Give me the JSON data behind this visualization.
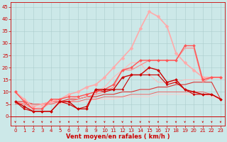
{
  "x": [
    0,
    1,
    2,
    3,
    4,
    5,
    6,
    7,
    8,
    9,
    10,
    11,
    12,
    13,
    14,
    15,
    16,
    17,
    18,
    19,
    20,
    21,
    22,
    23
  ],
  "lines": [
    {
      "y": [
        6,
        4,
        2,
        2,
        2,
        6,
        6,
        3,
        3,
        11,
        11,
        11,
        16,
        17,
        17,
        20,
        19,
        14,
        15,
        11,
        10,
        9,
        9,
        7
      ],
      "color": "#cc0000",
      "lw": 1.0,
      "marker": "D",
      "ms": 2.0,
      "zorder": 5
    },
    {
      "y": [
        6,
        3,
        2,
        2,
        2,
        6,
        5,
        3,
        4,
        11,
        10,
        11,
        11,
        17,
        17,
        17,
        17,
        13,
        14,
        11,
        9,
        9,
        9,
        7
      ],
      "color": "#cc0000",
      "lw": 0.8,
      "marker": "D",
      "ms": 1.5,
      "zorder": 4
    },
    {
      "y": [
        10,
        6,
        3,
        3,
        7,
        7,
        8,
        8,
        9,
        10,
        11,
        13,
        19,
        20,
        23,
        23,
        23,
        23,
        23,
        29,
        29,
        15,
        16,
        16
      ],
      "color": "#ff5555",
      "lw": 1.0,
      "marker": "D",
      "ms": 2.0,
      "zorder": 4
    },
    {
      "y": [
        6,
        5,
        3,
        3,
        6,
        6,
        6,
        7,
        8,
        9,
        10,
        12,
        19,
        19,
        21,
        23,
        23,
        23,
        23,
        28,
        28,
        14,
        16,
        16
      ],
      "color": "#ff8888",
      "lw": 0.8,
      "marker": null,
      "ms": 0,
      "zorder": 3
    },
    {
      "y": [
        10,
        7,
        4,
        5,
        6,
        7,
        9,
        10,
        12,
        13,
        16,
        20,
        24,
        28,
        36,
        43,
        41,
        37,
        26,
        22,
        19,
        16,
        16,
        16
      ],
      "color": "#ffaaaa",
      "lw": 1.2,
      "marker": "D",
      "ms": 2.5,
      "zorder": 3
    },
    {
      "y": [
        6,
        5,
        3,
        4,
        5,
        6,
        7,
        8,
        9,
        10,
        12,
        16,
        19,
        22,
        22,
        17,
        14,
        14,
        14,
        15,
        15,
        15,
        16,
        16
      ],
      "color": "#ffbbbb",
      "lw": 0.8,
      "marker": null,
      "ms": 0,
      "zorder": 2
    },
    {
      "y": [
        6,
        6,
        5,
        5,
        6,
        6,
        7,
        7,
        8,
        8,
        9,
        9,
        10,
        10,
        11,
        11,
        12,
        12,
        13,
        13,
        14,
        14,
        14,
        7
      ],
      "color": "#dd3333",
      "lw": 0.8,
      "marker": null,
      "ms": 0,
      "zorder": 2
    },
    {
      "y": [
        5,
        5,
        5,
        5,
        5,
        6,
        6,
        6,
        7,
        7,
        8,
        8,
        8,
        9,
        9,
        9,
        10,
        10,
        10,
        10,
        10,
        10,
        9,
        7
      ],
      "color": "#ee6666",
      "lw": 0.7,
      "marker": null,
      "ms": 0,
      "zorder": 2
    },
    {
      "y": [
        5,
        5,
        5,
        5,
        5,
        5,
        6,
        6,
        6,
        7,
        7,
        7,
        8,
        8,
        8,
        8,
        9,
        9,
        9,
        9,
        9,
        9,
        8,
        7
      ],
      "color": "#ffcccc",
      "lw": 0.7,
      "marker": null,
      "ms": 0,
      "zorder": 1
    }
  ],
  "xlabel": "Vent moyen/en rafales ( km/h )",
  "xlim": [
    -0.5,
    23.5
  ],
  "ylim": [
    -4,
    47
  ],
  "yticks": [
    0,
    5,
    10,
    15,
    20,
    25,
    30,
    35,
    40,
    45
  ],
  "xticks": [
    0,
    1,
    2,
    3,
    4,
    5,
    6,
    7,
    8,
    9,
    10,
    11,
    12,
    13,
    14,
    15,
    16,
    17,
    18,
    19,
    20,
    21,
    22,
    23
  ],
  "bg_color": "#cce8e8",
  "grid_color": "#aacccc",
  "axis_color": "#cc0000",
  "label_color": "#cc0000",
  "tick_labelsize": 5,
  "xlabel_fontsize": 6
}
